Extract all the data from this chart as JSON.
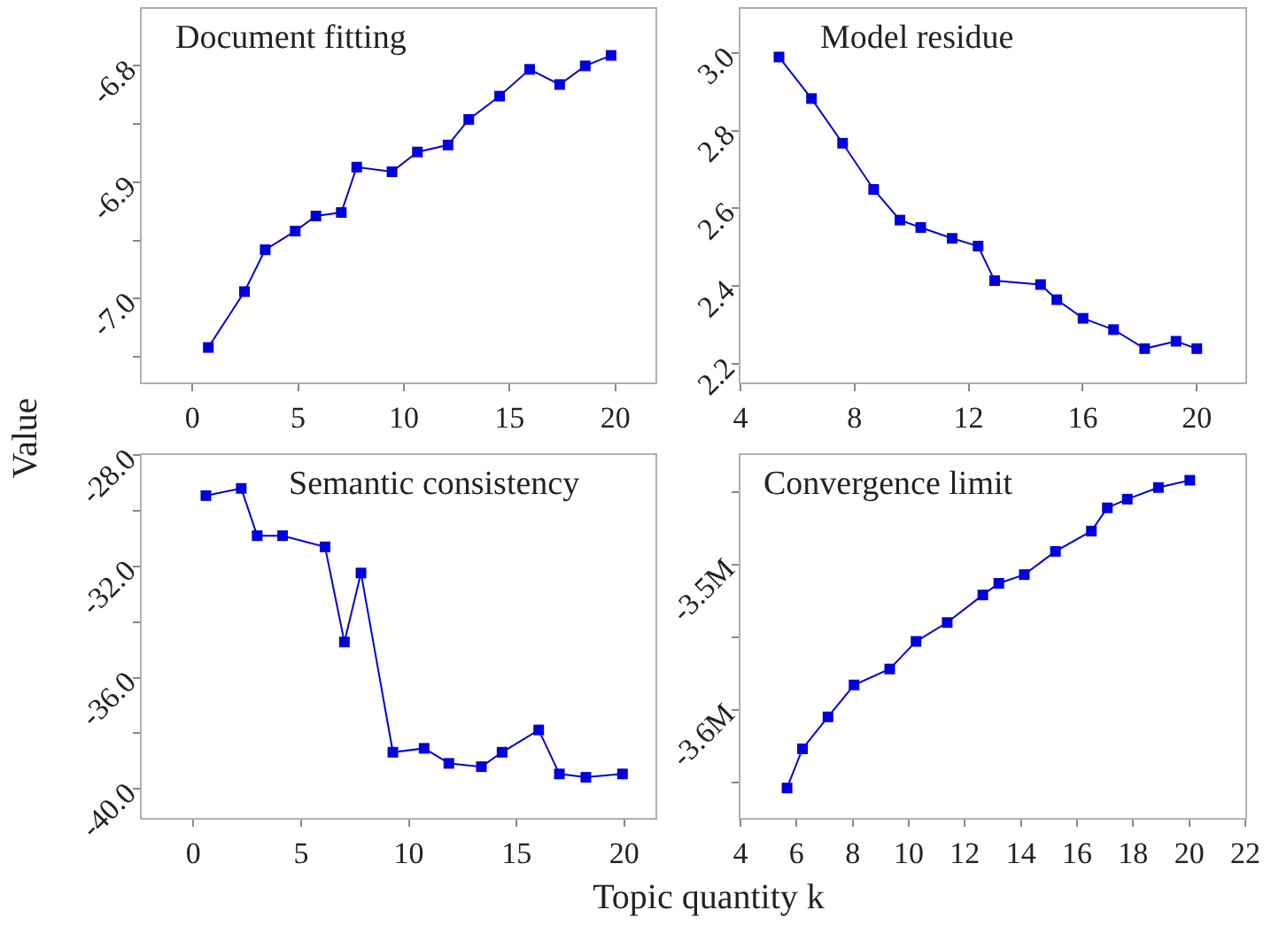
{
  "chart_data": [
    {
      "type": "line",
      "title": "Document fitting",
      "ylabel": "Value",
      "marker": "square",
      "line_style": "solid",
      "series": [
        {
          "color": "#0000dd",
          "x": [
            0.75,
            2.46,
            3.44,
            4.86,
            5.84,
            7.04,
            7.77,
            9.44,
            10.64,
            12.09,
            13.07,
            14.53,
            15.95,
            17.37,
            18.58,
            19.8
          ],
          "values": [
            -7.042,
            -6.994,
            -6.958,
            -6.942,
            -6.929,
            -6.926,
            -6.887,
            -6.891,
            -6.874,
            -6.868,
            -6.846,
            -6.826,
            -6.803,
            -6.816,
            -6.8,
            -6.791
          ]
        }
      ],
      "xlim": [
        -2.4,
        21.9
      ],
      "xticks": [
        0,
        5,
        10,
        15,
        20
      ],
      "ylim": [
        -7.072,
        -6.751
      ],
      "yticks": [
        {
          "value": -7.05,
          "label": null
        },
        {
          "value": -7.0,
          "label": "-7.0"
        },
        {
          "value": -6.95,
          "label": null
        },
        {
          "value": -6.9,
          "label": "-6.9"
        },
        {
          "value": -6.85,
          "label": null
        },
        {
          "value": -6.8,
          "label": "-6.8"
        }
      ]
    },
    {
      "type": "line",
      "title": "Model residue",
      "marker": "square",
      "line_style": "solid",
      "series": [
        {
          "color": "#0000dd",
          "x": [
            5.35,
            6.49,
            7.58,
            8.67,
            9.59,
            10.32,
            11.42,
            12.33,
            12.91,
            14.52,
            15.09,
            16.01,
            17.08,
            18.17,
            19.27,
            20.0
          ],
          "values": [
            2.99,
            2.883,
            2.768,
            2.649,
            2.57,
            2.551,
            2.523,
            2.503,
            2.414,
            2.404,
            2.365,
            2.317,
            2.288,
            2.239,
            2.258,
            2.239
          ]
        }
      ],
      "xlim": [
        4,
        21.7
      ],
      "xticks": [
        4,
        8,
        12,
        16,
        20
      ],
      "ylim": [
        2.152,
        3.114
      ],
      "yticks": [
        {
          "value": 2.2,
          "label": "2.2"
        },
        {
          "value": 2.4,
          "label": "2.4"
        },
        {
          "value": 2.6,
          "label": "2.6"
        },
        {
          "value": 2.8,
          "label": "2.8"
        },
        {
          "value": 3.0,
          "label": "3.0"
        }
      ]
    },
    {
      "type": "line",
      "title": "Semantic consistency",
      "xlabel": "Topic quantity k",
      "marker": "square",
      "line_style": "solid",
      "series": [
        {
          "color": "#0000dd",
          "x": [
            0.58,
            2.22,
            2.96,
            4.14,
            6.11,
            7.01,
            7.78,
            9.26,
            10.71,
            11.86,
            13.37,
            14.33,
            16.03,
            16.99,
            18.22,
            19.92
          ],
          "values": [
            -29.46,
            -29.2,
            -30.9,
            -30.9,
            -31.3,
            -34.72,
            -32.24,
            -38.68,
            -38.54,
            -39.08,
            -39.2,
            -38.68,
            -37.88,
            -39.46,
            -39.58,
            -39.46
          ]
        }
      ],
      "xlim": [
        -2.4,
        21.45
      ],
      "xticks": [
        0,
        5,
        10,
        15,
        20
      ],
      "ylim": [
        -41.04,
        -28.0
      ],
      "yticks": [
        {
          "value": -40,
          "label": "-40.0"
        },
        {
          "value": -38,
          "label": null
        },
        {
          "value": -36,
          "label": "-36.0"
        },
        {
          "value": -34,
          "label": null
        },
        {
          "value": -32,
          "label": "-32.0"
        },
        {
          "value": -30,
          "label": null
        },
        {
          "value": -28,
          "label": "-28.0"
        }
      ]
    },
    {
      "type": "line",
      "title": "Convergence limit",
      "marker": "square",
      "line_style": "solid",
      "series": [
        {
          "color": "#0000dd",
          "x": [
            5.66,
            6.21,
            7.12,
            8.05,
            9.32,
            10.26,
            11.37,
            12.64,
            13.21,
            14.12,
            15.23,
            16.51,
            17.08,
            17.79,
            18.9,
            20.02
          ],
          "values": [
            -3654000,
            -3627000,
            -3605000,
            -3583000,
            -3572000,
            -3553000,
            -3540000,
            -3521000,
            -3513000,
            -3507000,
            -3491000,
            -3477000,
            -3461000,
            -3455000,
            -3447000,
            -3442000
          ]
        }
      ],
      "xlim": [
        4,
        22
      ],
      "xticks": [
        4,
        6,
        8,
        10,
        12,
        14,
        16,
        18,
        20,
        22
      ],
      "ylim": [
        -3674600,
        -3424600
      ],
      "yticks": [
        {
          "value": -3650000,
          "label": null
        },
        {
          "value": -3600000,
          "label": "-3.6M"
        },
        {
          "value": -3550000,
          "label": null
        },
        {
          "value": -3500000,
          "label": "-3.5M"
        },
        {
          "value": -3450000,
          "label": null
        }
      ]
    }
  ]
}
